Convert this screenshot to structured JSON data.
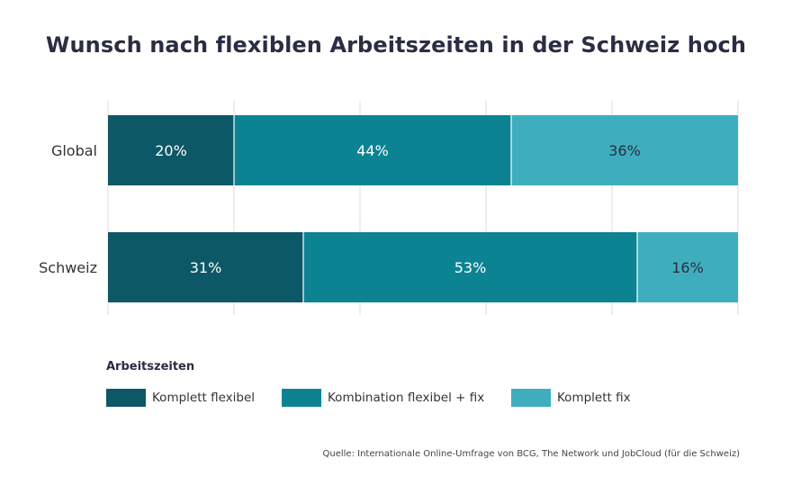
{
  "title": "Wunsch nach flexiblen Arbeitszeiten in der Schweiz hoch",
  "legend": {
    "title": "Arbeitszeiten",
    "items": [
      {
        "label": "Komplett flexibel",
        "color": "#0d5866"
      },
      {
        "label": "Kombination flexibel + fix",
        "color": "#0c8393"
      },
      {
        "label": "Komplett fix",
        "color": "#3eaebe"
      }
    ]
  },
  "source": "Quelle: Internationale Online-Umfrage von BCG, The Network und JobCloud (für die Schweiz)",
  "chart_data": {
    "type": "bar",
    "orientation": "horizontal",
    "stacked": true,
    "categories": [
      "Global",
      "Schweiz"
    ],
    "series": [
      {
        "name": "Komplett flexibel",
        "values": [
          20,
          31
        ],
        "labels": [
          "20%",
          "31%"
        ],
        "color": "#0d5866",
        "label_color": "#ffffff"
      },
      {
        "name": "Kombination flexibel + fix",
        "values": [
          44,
          53
        ],
        "labels": [
          "44%",
          "53%"
        ],
        "color": "#0c8393",
        "label_color": "#ffffff"
      },
      {
        "name": "Komplett fix",
        "values": [
          36,
          16
        ],
        "labels": [
          "36%",
          "16%"
        ],
        "color": "#3eaebe",
        "label_color": "#2a2d43"
      }
    ],
    "xlim": [
      0,
      100
    ],
    "grid": true,
    "legend_position": "bottom-left"
  }
}
